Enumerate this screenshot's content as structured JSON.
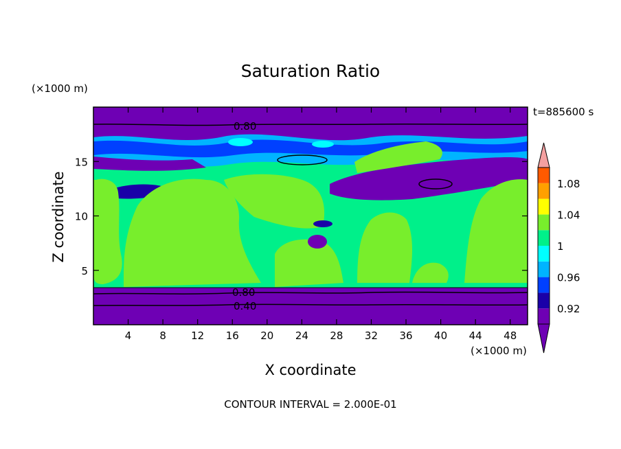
{
  "chart_data": {
    "type": "heatmap",
    "title": "Saturation Ratio",
    "xlabel": "X coordinate",
    "ylabel": "Z coordinate",
    "x_unit": "(×1000 m)",
    "y_unit": "(×1000 m)",
    "time_label": "t=885600 s",
    "footer": "CONTOUR INTERVAL = 2.000E-01",
    "xlim": [
      0,
      50
    ],
    "ylim": [
      0,
      20
    ],
    "x_ticks": [
      4,
      8,
      12,
      16,
      20,
      24,
      28,
      32,
      36,
      40,
      44,
      48
    ],
    "y_ticks": [
      5,
      10,
      15
    ],
    "contour_labels": [
      "0.80",
      "0.80",
      "0.40"
    ],
    "colorbar": {
      "levels": [
        0.9,
        0.92,
        0.94,
        0.96,
        0.98,
        1.0,
        1.02,
        1.04,
        1.06,
        1.08,
        1.1
      ],
      "tick_labels": [
        "0.92",
        "0.96",
        "1",
        "1.04",
        "1.08"
      ],
      "colors": [
        "#6e00b4",
        "#1a00a8",
        "#0040ff",
        "#00b4ff",
        "#00ffff",
        "#00f08a",
        "#78ee2c",
        "#ffff00",
        "#ffa000",
        "#ff5a00",
        "#ff1a1a"
      ],
      "over_color": "#f4a0a0",
      "under_color": "#6e00b4"
    }
  }
}
